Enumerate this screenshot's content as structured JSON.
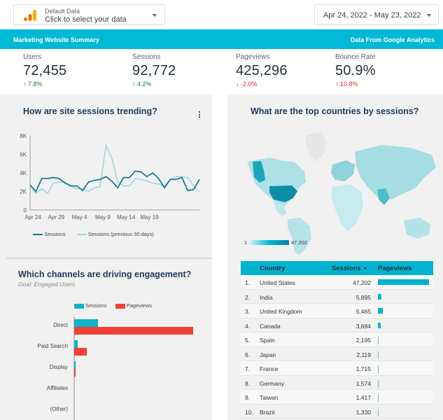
{
  "topbar": {
    "datasource_small": "Default Data",
    "datasource_main": "Click to select your data",
    "date_range": "Apr 24, 2022 - May 23, 2022"
  },
  "band": {
    "title": "Marketing Website Summary",
    "source": "Data From Google Analytics"
  },
  "metrics": [
    {
      "label": "Users",
      "value": "72,455",
      "change": "7.8%",
      "direction": "up"
    },
    {
      "label": "Sessions",
      "value": "92,772",
      "change": "4.2%",
      "direction": "up"
    },
    {
      "label": "Pageviews",
      "value": "425,296",
      "change": "-2.0%",
      "direction": "down"
    },
    {
      "label": "Bounce Rate",
      "value": "50.9%",
      "change": "10.8%",
      "direction": "up"
    }
  ],
  "colors": {
    "accent": "#01b8d6",
    "teal_dark": "#1d7c8f",
    "teal_light": "#9fd6d6",
    "red": "#ef4136",
    "green": "#188038"
  },
  "trend": {
    "title": "How are site sessions trending?",
    "legend_current": "Sessions",
    "legend_previous": "Sessions (previous 30 days)"
  },
  "map": {
    "title": "What are the top countries by sessions?",
    "scale_min": "1",
    "scale_max": "47,202"
  },
  "channels": {
    "title": "Which channels are driving engagement?",
    "subtitle": "Goal: Engaged Users",
    "legend_sessions": "Sessions",
    "legend_pageviews": "Pageviews"
  },
  "table": {
    "headers": {
      "country": "Country",
      "sessions": "Sessions",
      "pageviews": "Pageviews"
    },
    "rows": [
      {
        "num": "1.",
        "country": "United States",
        "sessions": "47,202",
        "pv_share": 1.0
      },
      {
        "num": "2.",
        "country": "India",
        "sessions": "5,895",
        "pv_share": 0.07
      },
      {
        "num": "3.",
        "country": "United Kingdom",
        "sessions": "5,465",
        "pv_share": 0.09
      },
      {
        "num": "4.",
        "country": "Canada",
        "sessions": "3,694",
        "pv_share": 0.06
      },
      {
        "num": "5.",
        "country": "Spain",
        "sessions": "2,195",
        "pv_share": 0.03
      },
      {
        "num": "6.",
        "country": "Japan",
        "sessions": "2,119",
        "pv_share": 0.03
      },
      {
        "num": "7.",
        "country": "France",
        "sessions": "1,715",
        "pv_share": 0.02
      },
      {
        "num": "8.",
        "country": "Germany",
        "sessions": "1,574",
        "pv_share": 0.02
      },
      {
        "num": "9.",
        "country": "Taiwan",
        "sessions": "1,417",
        "pv_share": 0.02
      },
      {
        "num": "10.",
        "country": "Brazil",
        "sessions": "1,330",
        "pv_share": 0.02
      }
    ]
  },
  "chart_data": [
    {
      "type": "line",
      "title": "How are site sessions trending?",
      "xlabel": "",
      "ylabel": "",
      "ylim": [
        0,
        8000
      ],
      "yticks": [
        "0",
        "2K",
        "4K",
        "6K",
        "8K"
      ],
      "xticks": [
        "Apr 24",
        "Apr 29",
        "May 4",
        "May 9",
        "May 14",
        "May 19"
      ],
      "series": [
        {
          "name": "Sessions",
          "values": [
            2700,
            2000,
            3400,
            3400,
            3500,
            3400,
            2900,
            2600,
            2600,
            2100,
            3000,
            3200,
            3300,
            3600,
            3100,
            2400,
            3500,
            3500,
            4200,
            4100,
            3600,
            4000,
            3400,
            2400,
            3300,
            3300,
            3500,
            2100,
            2200,
            3300
          ]
        },
        {
          "name": "Sessions (previous 30 days)",
          "values": [
            2500,
            1800,
            2300,
            1800,
            2900,
            3000,
            3000,
            2500,
            2300,
            2300,
            2000,
            2400,
            2500,
            7000,
            5600,
            3000,
            2600,
            2600,
            3400,
            3300,
            3100,
            2900,
            2800,
            2600,
            3300,
            3600,
            3600,
            3500,
            2600,
            1900
          ]
        }
      ]
    },
    {
      "type": "bar",
      "title": "Which channels are driving engagement?",
      "categories": [
        "Direct",
        "Paid Search",
        "Display",
        "Affiliates",
        "(Other)"
      ],
      "series": [
        {
          "name": "Sessions",
          "values": [
            34,
            5,
            2,
            0,
            0
          ]
        },
        {
          "name": "Pageviews",
          "values": [
            170,
            18,
            2,
            0,
            0
          ]
        }
      ]
    }
  ]
}
